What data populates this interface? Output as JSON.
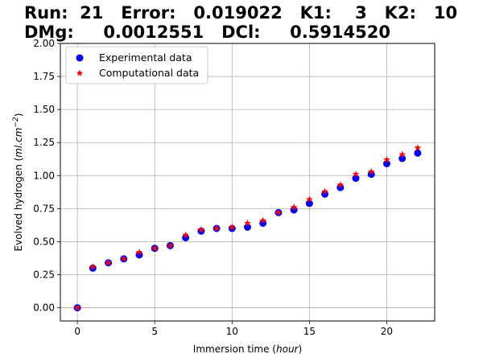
{
  "header": {
    "line1": "Run:  21   Error:   0.019022   K1:    3   K2:   10",
    "line2": "DMg:     0.0012551   DCl:     0.5914520"
  },
  "colors": {
    "experimental": "#0000ff",
    "computational": "#ff0000",
    "grid": "#b0b0b0",
    "axes": "#000000"
  },
  "chart_data": {
    "type": "scatter",
    "xlabel_prefix": "Immersion time (",
    "xlabel_unit": "hour",
    "xlabel_suffix": ")",
    "ylabel_prefix": "Evolved hydrogen (",
    "ylabel_unit": "ml.cm",
    "ylabel_exp": "−2",
    "ylabel_suffix": ")",
    "xlim": [
      -1.1,
      23.1
    ],
    "ylim": [
      -0.1,
      2.0
    ],
    "xticks": [
      0,
      5,
      10,
      15,
      20
    ],
    "yticks": [
      0.0,
      0.25,
      0.5,
      0.75,
      1.0,
      1.25,
      1.5,
      1.75,
      2.0
    ],
    "ytick_labels": [
      "0.00",
      "0.25",
      "0.50",
      "0.75",
      "1.00",
      "1.25",
      "1.50",
      "1.75",
      "2.00"
    ],
    "grid": true,
    "legend_position": "top-left",
    "series": [
      {
        "name": "Experimental data",
        "marker": "circle",
        "x": [
          0,
          1,
          2,
          3,
          4,
          5,
          6,
          7,
          8,
          9,
          10,
          11,
          12,
          13,
          14,
          15,
          16,
          17,
          18,
          19,
          20,
          21,
          22
        ],
        "y": [
          0.0,
          0.3,
          0.34,
          0.37,
          0.4,
          0.45,
          0.47,
          0.53,
          0.58,
          0.6,
          0.6,
          0.61,
          0.64,
          0.72,
          0.74,
          0.79,
          0.86,
          0.91,
          0.98,
          1.01,
          1.09,
          1.13,
          1.17
        ]
      },
      {
        "name": "Computational data",
        "marker": "star",
        "x": [
          0,
          1,
          2,
          3,
          4,
          5,
          6,
          7,
          8,
          9,
          10,
          11,
          12,
          13,
          14,
          15,
          16,
          17,
          18,
          19,
          20,
          21,
          22
        ],
        "y": [
          0.0,
          0.31,
          0.34,
          0.37,
          0.42,
          0.45,
          0.47,
          0.55,
          0.59,
          0.6,
          0.61,
          0.64,
          0.66,
          0.72,
          0.76,
          0.82,
          0.88,
          0.93,
          1.01,
          1.03,
          1.12,
          1.16,
          1.21
        ]
      }
    ]
  }
}
